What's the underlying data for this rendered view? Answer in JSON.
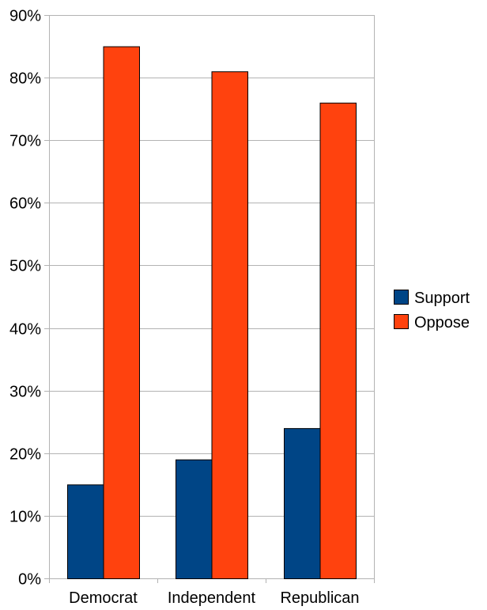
{
  "chart_data": {
    "type": "bar",
    "title": "",
    "xlabel": "",
    "ylabel": "",
    "categories": [
      "Democrat",
      "Independent",
      "Republican"
    ],
    "series": [
      {
        "name": "Support",
        "color": "#004586",
        "values": [
          15,
          19,
          24
        ]
      },
      {
        "name": "Oppose",
        "color": "#ff420e",
        "values": [
          85,
          81,
          76
        ]
      }
    ],
    "ylim": [
      0,
      90
    ],
    "yticks": [
      0,
      10,
      20,
      30,
      40,
      50,
      60,
      70,
      80,
      90
    ],
    "ytick_labels": [
      "0%",
      "10%",
      "20%",
      "30%",
      "40%",
      "50%",
      "60%",
      "70%",
      "80%",
      "90%"
    ],
    "grid": true,
    "legend_position": "right"
  },
  "legend": {
    "items": [
      {
        "label": "Support",
        "color": "#004586"
      },
      {
        "label": "Oppose",
        "color": "#ff420e"
      }
    ]
  },
  "colors": {
    "grid": "#b3b3b3",
    "bar_border": "#000000"
  }
}
